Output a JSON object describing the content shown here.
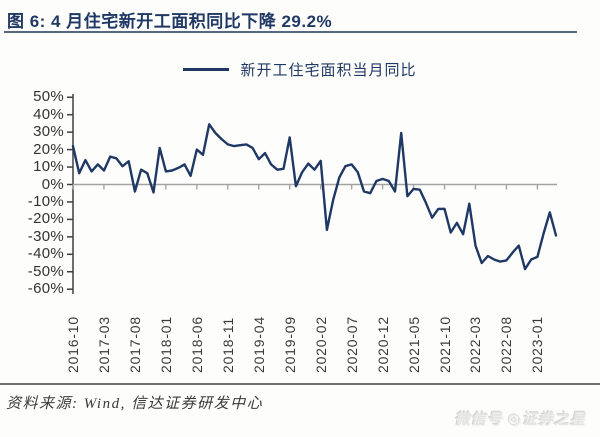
{
  "figure": {
    "title": "图 6:  4 月住宅新开工面积同比下降 29.2%",
    "source": "资料来源: Wind, 信达证券研发中心",
    "watermark": "微信号 ◎证券之星"
  },
  "colors": {
    "accent_navy": "#1f3864",
    "axis": "#404040",
    "zeroline": "#a3a3a3",
    "label_text": "#333333",
    "underline": "#56687f",
    "bottom_rule": "#6e6e6e"
  },
  "chart_data": {
    "type": "line",
    "title": "4 月住宅新开工面积同比下降 29.2%",
    "xlabel": "",
    "ylabel": "",
    "unit": "%",
    "grid": false,
    "legend_position": "top",
    "ylim": [
      -60,
      50
    ],
    "ytick_step": 10,
    "yticks": [
      "50%",
      "40%",
      "30%",
      "20%",
      "10%",
      "0%",
      "-10%",
      "-20%",
      "-30%",
      "-40%",
      "-50%",
      "-60%"
    ],
    "xticks": [
      "2016-10",
      "2017-03",
      "2017-08",
      "2018-01",
      "2018-06",
      "2018-11",
      "2019-04",
      "2019-09",
      "2020-02",
      "2020-07",
      "2020-12",
      "2021-05",
      "2021-10",
      "2022-03",
      "2022-08",
      "2023-01"
    ],
    "xtick_every": 5,
    "line_color": "#1f3864",
    "series": [
      {
        "name": "新开工住宅面积当月同比",
        "x": [
          "2016-10",
          "2016-11",
          "2016-12",
          "2017-01",
          "2017-02",
          "2017-03",
          "2017-04",
          "2017-05",
          "2017-06",
          "2017-07",
          "2017-08",
          "2017-09",
          "2017-10",
          "2017-11",
          "2017-12",
          "2018-01",
          "2018-02",
          "2018-03",
          "2018-04",
          "2018-05",
          "2018-06",
          "2018-07",
          "2018-08",
          "2018-09",
          "2018-10",
          "2018-11",
          "2018-12",
          "2019-01",
          "2019-02",
          "2019-03",
          "2019-04",
          "2019-05",
          "2019-06",
          "2019-07",
          "2019-08",
          "2019-09",
          "2019-10",
          "2019-11",
          "2019-12",
          "2020-01",
          "2020-02",
          "2020-03",
          "2020-04",
          "2020-05",
          "2020-06",
          "2020-07",
          "2020-08",
          "2020-09",
          "2020-10",
          "2020-11",
          "2020-12",
          "2021-01",
          "2021-02",
          "2021-03",
          "2021-04",
          "2021-05",
          "2021-06",
          "2021-07",
          "2021-08",
          "2021-09",
          "2021-10",
          "2021-11",
          "2021-12",
          "2022-01",
          "2022-02",
          "2022-03",
          "2022-04",
          "2022-05",
          "2022-06",
          "2022-07",
          "2022-08",
          "2022-09",
          "2022-10",
          "2022-11",
          "2022-12",
          "2023-01",
          "2023-02",
          "2023-03",
          "2023-04"
        ],
        "values": [
          22,
          6.5,
          14,
          7.5,
          11.5,
          8,
          16,
          15,
          10.5,
          13.3,
          -4,
          8.5,
          6.5,
          -4.5,
          21,
          7.5,
          8,
          9.5,
          11.5,
          5,
          20,
          17,
          34.5,
          29.5,
          26,
          23,
          22,
          22.5,
          23,
          21,
          14.5,
          18,
          11.5,
          8.5,
          9,
          27,
          -1,
          7,
          12,
          8.5,
          13.5,
          -26,
          -9,
          4,
          10.5,
          11.5,
          7,
          -4,
          -5,
          2,
          3.2,
          2,
          -4,
          29.5,
          -6.7,
          -2.5,
          -3,
          -10.5,
          -19,
          -14,
          -13.9,
          -27.5,
          -22,
          -28.5,
          -11,
          -35,
          -45,
          -41,
          -43,
          -44.2,
          -43.5,
          -39,
          -35,
          -48.5,
          -43,
          -41.5,
          -28,
          -16,
          -29.2
        ]
      }
    ]
  }
}
